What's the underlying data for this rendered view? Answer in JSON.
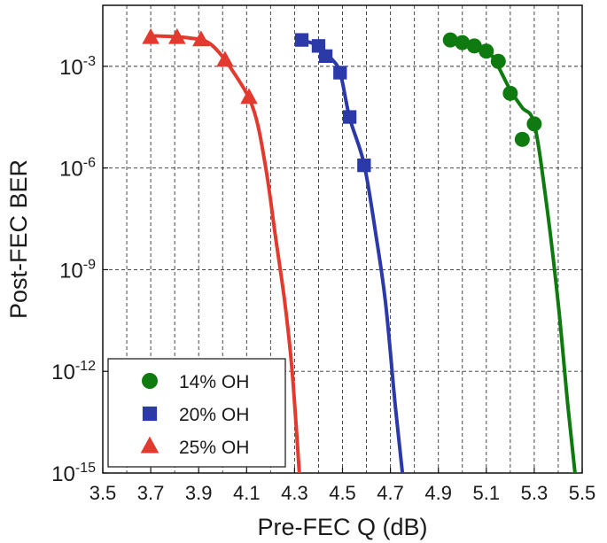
{
  "chart_data": {
    "type": "line",
    "xlabel": "Pre-FEC Q (dB)",
    "ylabel": "Post-FEC BER",
    "xlim": [
      3.5,
      5.5
    ],
    "ylim_log10": [
      -15,
      -1.2
    ],
    "yscale": "log",
    "grid": true,
    "grid_style": "dashed",
    "legend_position": "bottom-left",
    "x_ticks": [
      {
        "value": 3.5,
        "label": "3.5"
      },
      {
        "value": 3.7,
        "label": "3.7"
      },
      {
        "value": 3.9,
        "label": "3.9"
      },
      {
        "value": 4.1,
        "label": "4.1"
      },
      {
        "value": 4.3,
        "label": "4.3"
      },
      {
        "value": 4.5,
        "label": "4.5"
      },
      {
        "value": 4.7,
        "label": "4.7"
      },
      {
        "value": 4.9,
        "label": "4.9"
      },
      {
        "value": 5.1,
        "label": "5.1"
      },
      {
        "value": 5.3,
        "label": "5.3"
      },
      {
        "value": 5.5,
        "label": "5.5"
      }
    ],
    "y_ticks": [
      {
        "exp": -3,
        "base": "10",
        "sup": "-3"
      },
      {
        "exp": -6,
        "base": "10",
        "sup": "-6"
      },
      {
        "exp": -9,
        "base": "10",
        "sup": "-9"
      },
      {
        "exp": -12,
        "base": "10",
        "sup": "-12"
      },
      {
        "exp": -15,
        "base": "10",
        "sup": "-15"
      }
    ],
    "x_grid": [
      3.6,
      3.7,
      3.8,
      3.9,
      4.0,
      4.1,
      4.2,
      4.3,
      4.4,
      4.5,
      4.6,
      4.7,
      4.8,
      4.9,
      5.0,
      5.1,
      5.2,
      5.3,
      5.4
    ],
    "y_grid_log10": [
      -3,
      -6,
      -9,
      -12
    ],
    "series": [
      {
        "name": "14% OH",
        "color": "#0f7a0f",
        "marker": "circle",
        "points": [
          {
            "x": 4.95,
            "y": 0.006
          },
          {
            "x": 5.0,
            "y": 0.005
          },
          {
            "x": 5.05,
            "y": 0.004
          },
          {
            "x": 5.1,
            "y": 0.0028
          },
          {
            "x": 5.15,
            "y": 0.0014
          },
          {
            "x": 5.2,
            "y": 0.00016
          },
          {
            "x": 5.25,
            "y": 7e-06
          },
          {
            "x": 5.3,
            "y": 2e-05
          }
        ],
        "curve": [
          {
            "x": 4.95,
            "y": 0.006
          },
          {
            "x": 5.05,
            "y": 0.004
          },
          {
            "x": 5.12,
            "y": 0.0022
          },
          {
            "x": 5.2,
            "y": 0.0002
          },
          {
            "x": 5.25,
            "y": 6e-05
          },
          {
            "x": 5.3,
            "y": 2e-05
          },
          {
            "x": 5.35,
            "y": 1e-07
          },
          {
            "x": 5.4,
            "y": 1e-10
          },
          {
            "x": 5.44,
            "y": 1e-13
          },
          {
            "x": 5.47,
            "y": 1e-15
          }
        ]
      },
      {
        "name": "20% OH",
        "color": "#2b3aa8",
        "marker": "square",
        "points": [
          {
            "x": 4.33,
            "y": 0.006
          },
          {
            "x": 4.4,
            "y": 0.004
          },
          {
            "x": 4.43,
            "y": 0.002
          },
          {
            "x": 4.49,
            "y": 0.00065
          },
          {
            "x": 4.53,
            "y": 3.2e-05
          },
          {
            "x": 4.59,
            "y": 1.2e-06
          }
        ],
        "curve": [
          {
            "x": 4.33,
            "y": 0.006
          },
          {
            "x": 4.4,
            "y": 0.004
          },
          {
            "x": 4.45,
            "y": 0.0018
          },
          {
            "x": 4.49,
            "y": 0.00065
          },
          {
            "x": 4.53,
            "y": 3e-05
          },
          {
            "x": 4.59,
            "y": 1.3e-06
          },
          {
            "x": 4.64,
            "y": 1e-08
          },
          {
            "x": 4.68,
            "y": 1e-10
          },
          {
            "x": 4.72,
            "y": 1e-13
          },
          {
            "x": 4.75,
            "y": 1e-15
          }
        ]
      },
      {
        "name": "25% OH",
        "color": "#e23a2e",
        "marker": "triangle",
        "points": [
          {
            "x": 3.7,
            "y": 0.007
          },
          {
            "x": 3.81,
            "y": 0.007
          },
          {
            "x": 3.91,
            "y": 0.006
          },
          {
            "x": 4.01,
            "y": 0.0015
          },
          {
            "x": 4.11,
            "y": 0.00012
          }
        ],
        "curve": [
          {
            "x": 3.7,
            "y": 0.008
          },
          {
            "x": 3.85,
            "y": 0.007
          },
          {
            "x": 3.95,
            "y": 0.0045
          },
          {
            "x": 4.05,
            "y": 0.0006
          },
          {
            "x": 4.13,
            "y": 5e-05
          },
          {
            "x": 4.18,
            "y": 1e-06
          },
          {
            "x": 4.22,
            "y": 1e-08
          },
          {
            "x": 4.26,
            "y": 1e-10
          },
          {
            "x": 4.29,
            "y": 1e-12
          },
          {
            "x": 4.32,
            "y": 1e-15
          }
        ]
      }
    ]
  }
}
